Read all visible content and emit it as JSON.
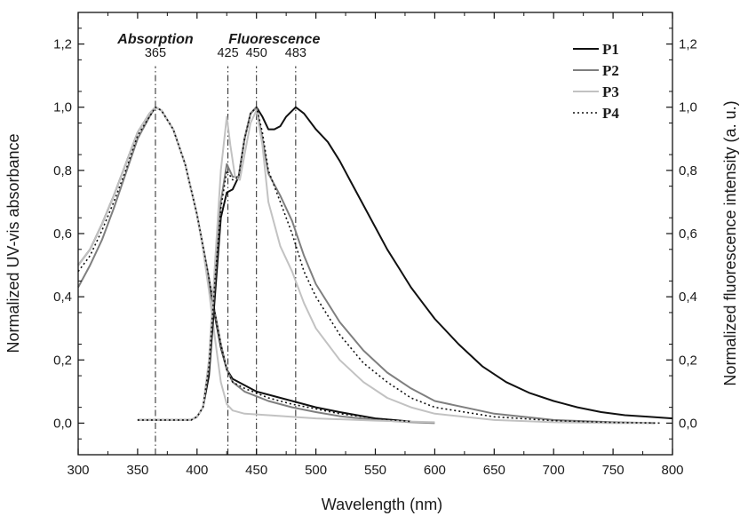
{
  "chart_data": {
    "type": "line",
    "xlabel": "Wavelength (nm)",
    "ylabel": "Normalized UV-vis absorbance",
    "y2label": "Normalized fluorescence intensity (a. u.)",
    "xlim": [
      300,
      800
    ],
    "ylim": [
      -0.1,
      1.3
    ],
    "x_ticks": [
      "300",
      "350",
      "400",
      "450",
      "500",
      "550",
      "600",
      "650",
      "700",
      "750",
      "800"
    ],
    "y_ticks": [
      "0,0",
      "0,2",
      "0,4",
      "0,6",
      "0,8",
      "1,0",
      "1,2"
    ],
    "y2_ticks": [
      "0,0",
      "0,2",
      "0,4",
      "0,6",
      "0,8",
      "1,0",
      "1,2"
    ],
    "section_labels": [
      {
        "text": "Absorption",
        "x": 365
      },
      {
        "text": "Fluorescence",
        "x": 465
      }
    ],
    "peak_lines": [
      {
        "label": "365",
        "x": 365
      },
      {
        "label": "425",
        "x": 426
      },
      {
        "label": "450",
        "x": 450
      },
      {
        "label": "483",
        "x": 483
      }
    ],
    "legend_position": "top-right",
    "grid": false,
    "series": [
      {
        "name": "P1",
        "kind": "absorption",
        "color": "#111111",
        "dash": "solid",
        "x": [
          300,
          310,
          320,
          330,
          340,
          350,
          360,
          365,
          370,
          380,
          390,
          400,
          410,
          415,
          420,
          425,
          430,
          440,
          450,
          460,
          480,
          500,
          520,
          550,
          580
        ],
        "y": [
          0.5,
          0.55,
          0.63,
          0.72,
          0.82,
          0.92,
          0.98,
          1.0,
          0.99,
          0.93,
          0.82,
          0.66,
          0.45,
          0.34,
          0.24,
          0.17,
          0.14,
          0.12,
          0.1,
          0.09,
          0.07,
          0.05,
          0.035,
          0.015,
          0.005
        ]
      },
      {
        "name": "P2",
        "kind": "absorption",
        "color": "#7f7f7f",
        "dash": "solid",
        "x": [
          300,
          310,
          320,
          330,
          340,
          350,
          360,
          365,
          370,
          380,
          390,
          400,
          410,
          415,
          420,
          425,
          430,
          440,
          450,
          460,
          480,
          500,
          520,
          550,
          580,
          600
        ],
        "y": [
          0.43,
          0.5,
          0.58,
          0.68,
          0.79,
          0.9,
          0.97,
          1.0,
          0.99,
          0.93,
          0.82,
          0.66,
          0.46,
          0.35,
          0.25,
          0.17,
          0.13,
          0.1,
          0.085,
          0.07,
          0.05,
          0.035,
          0.022,
          0.01,
          0.003,
          0.0
        ]
      },
      {
        "name": "P3",
        "kind": "absorption",
        "color": "#c2c2c2",
        "dash": "solid",
        "x": [
          300,
          310,
          320,
          330,
          340,
          350,
          360,
          365,
          370,
          380,
          390,
          400,
          405,
          410,
          415,
          420,
          425,
          430,
          440,
          460,
          500,
          550,
          600
        ],
        "y": [
          0.5,
          0.55,
          0.63,
          0.72,
          0.82,
          0.92,
          0.98,
          1.0,
          0.99,
          0.93,
          0.82,
          0.66,
          0.55,
          0.42,
          0.27,
          0.13,
          0.06,
          0.04,
          0.03,
          0.025,
          0.015,
          0.008,
          0.003
        ]
      },
      {
        "name": "P4",
        "kind": "absorption",
        "color": "#111111",
        "dash": "dotted",
        "x": [
          300,
          310,
          320,
          330,
          340,
          350,
          360,
          365,
          370,
          380,
          390,
          400,
          410,
          415,
          420,
          425,
          430,
          440,
          450,
          460,
          480,
          500,
          520,
          550,
          580
        ],
        "y": [
          0.48,
          0.53,
          0.61,
          0.7,
          0.8,
          0.91,
          0.97,
          1.0,
          0.99,
          0.93,
          0.82,
          0.66,
          0.46,
          0.35,
          0.25,
          0.17,
          0.13,
          0.11,
          0.095,
          0.08,
          0.06,
          0.045,
          0.03,
          0.015,
          0.005
        ]
      },
      {
        "name": "P1",
        "kind": "fluorescence",
        "color": "#111111",
        "dash": "solid",
        "x": [
          350,
          380,
          395,
          400,
          405,
          410,
          415,
          420,
          425,
          430,
          435,
          440,
          445,
          450,
          455,
          460,
          465,
          470,
          475,
          483,
          490,
          500,
          510,
          520,
          530,
          540,
          550,
          560,
          570,
          580,
          590,
          600,
          620,
          640,
          660,
          680,
          700,
          720,
          740,
          760,
          780,
          800
        ],
        "y": [
          0.01,
          0.01,
          0.01,
          0.02,
          0.05,
          0.15,
          0.4,
          0.65,
          0.73,
          0.74,
          0.78,
          0.9,
          0.98,
          1.0,
          0.97,
          0.93,
          0.93,
          0.94,
          0.97,
          1.0,
          0.98,
          0.93,
          0.89,
          0.83,
          0.76,
          0.69,
          0.62,
          0.55,
          0.49,
          0.43,
          0.38,
          0.33,
          0.25,
          0.18,
          0.13,
          0.095,
          0.07,
          0.05,
          0.035,
          0.025,
          0.02,
          0.015
        ]
      },
      {
        "name": "P2",
        "kind": "fluorescence",
        "color": "#7f7f7f",
        "dash": "solid",
        "x": [
          350,
          380,
          395,
          400,
          405,
          410,
          415,
          420,
          425,
          430,
          435,
          440,
          445,
          450,
          455,
          460,
          470,
          480,
          490,
          500,
          520,
          540,
          560,
          580,
          600,
          650,
          700,
          750,
          785
        ],
        "y": [
          0.01,
          0.01,
          0.01,
          0.02,
          0.05,
          0.18,
          0.45,
          0.7,
          0.82,
          0.78,
          0.78,
          0.9,
          0.98,
          1.0,
          0.9,
          0.79,
          0.72,
          0.64,
          0.53,
          0.44,
          0.32,
          0.23,
          0.16,
          0.11,
          0.07,
          0.03,
          0.01,
          0.003,
          0.0
        ]
      },
      {
        "name": "P3",
        "kind": "fluorescence",
        "color": "#c2c2c2",
        "dash": "solid",
        "x": [
          350,
          380,
          395,
          400,
          405,
          410,
          415,
          420,
          425,
          428,
          432,
          436,
          440,
          445,
          450,
          455,
          460,
          470,
          480,
          490,
          500,
          520,
          540,
          560,
          580,
          600,
          650,
          700,
          750,
          780
        ],
        "y": [
          0.01,
          0.01,
          0.01,
          0.02,
          0.05,
          0.2,
          0.5,
          0.8,
          0.97,
          0.88,
          0.78,
          0.77,
          0.85,
          0.95,
          0.99,
          0.88,
          0.7,
          0.56,
          0.48,
          0.38,
          0.3,
          0.2,
          0.13,
          0.08,
          0.05,
          0.03,
          0.01,
          0.003,
          0.0,
          0.0
        ]
      },
      {
        "name": "P4",
        "kind": "fluorescence",
        "color": "#111111",
        "dash": "dotted",
        "x": [
          350,
          380,
          395,
          400,
          405,
          410,
          415,
          420,
          425,
          430,
          435,
          440,
          445,
          450,
          455,
          460,
          470,
          480,
          490,
          500,
          520,
          540,
          560,
          580,
          600,
          650,
          700,
          750,
          790
        ],
        "y": [
          0.01,
          0.01,
          0.01,
          0.02,
          0.05,
          0.18,
          0.45,
          0.68,
          0.8,
          0.77,
          0.78,
          0.9,
          0.98,
          1.0,
          0.92,
          0.8,
          0.7,
          0.6,
          0.48,
          0.4,
          0.28,
          0.19,
          0.13,
          0.08,
          0.05,
          0.02,
          0.008,
          0.002,
          0.0
        ]
      }
    ],
    "legend": [
      {
        "name": "P1",
        "color": "#111111",
        "dash": "solid"
      },
      {
        "name": "P2",
        "color": "#7f7f7f",
        "dash": "solid"
      },
      {
        "name": "P3",
        "color": "#c2c2c2",
        "dash": "solid"
      },
      {
        "name": "P4",
        "color": "#111111",
        "dash": "dotted"
      }
    ]
  }
}
